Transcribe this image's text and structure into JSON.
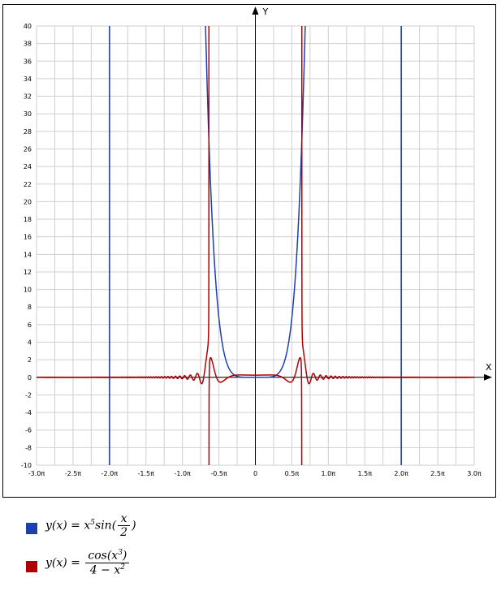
{
  "chart_data": {
    "type": "line",
    "title": "",
    "xlabel": "X",
    "ylabel": "Y",
    "xlim_pi": [
      -3.0,
      3.0
    ],
    "ylim": [
      -10,
      40
    ],
    "grid": true,
    "x_ticks": [
      {
        "value_pi": -3.0,
        "label": "-3.0π"
      },
      {
        "value_pi": -2.5,
        "label": "-2.5π"
      },
      {
        "value_pi": -2.0,
        "label": "-2.0π"
      },
      {
        "value_pi": -1.5,
        "label": "-1.5π"
      },
      {
        "value_pi": -1.0,
        "label": "-1.0π"
      },
      {
        "value_pi": -0.5,
        "label": "-0.5π"
      },
      {
        "value_pi": 0,
        "label": "0"
      },
      {
        "value_pi": 0.5,
        "label": "0.5π"
      },
      {
        "value_pi": 1.0,
        "label": "1.0π"
      },
      {
        "value_pi": 1.5,
        "label": "1.5π"
      },
      {
        "value_pi": 2.0,
        "label": "2.0π"
      },
      {
        "value_pi": 2.5,
        "label": "2.5π"
      },
      {
        "value_pi": 3.0,
        "label": "3.0π"
      }
    ],
    "y_ticks": [
      40,
      38,
      36,
      34,
      32,
      30,
      28,
      26,
      24,
      22,
      20,
      18,
      16,
      14,
      12,
      10,
      8,
      6,
      4,
      2,
      0,
      -2,
      -4,
      -6,
      -8,
      -10
    ],
    "series": [
      {
        "formula": "x^5 sin(x/2)",
        "color": "#1f3eb0",
        "values": [
          {
            "x": -2.2,
            "y": 40.0
          },
          {
            "x": -2.1,
            "y": 30.6
          },
          {
            "x": -2.0,
            "y": 26.9
          },
          {
            "x": -1.9,
            "y": 20.2
          },
          {
            "x": -1.8,
            "y": 14.7
          },
          {
            "x": -1.6,
            "y": 7.5
          },
          {
            "x": -1.4,
            "y": 3.5
          },
          {
            "x": -1.2,
            "y": 1.4
          },
          {
            "x": -1.0,
            "y": 0.48
          },
          {
            "x": -0.8,
            "y": 0.13
          },
          {
            "x": -0.6,
            "y": 0.023
          },
          {
            "x": -0.4,
            "y": 0.002
          },
          {
            "x": 0,
            "y": 0
          },
          {
            "x": 0.4,
            "y": 0.002
          },
          {
            "x": 0.6,
            "y": 0.023
          },
          {
            "x": 0.8,
            "y": 0.13
          },
          {
            "x": 1.0,
            "y": 0.48
          },
          {
            "x": 1.2,
            "y": 1.4
          },
          {
            "x": 1.4,
            "y": 3.5
          },
          {
            "x": 1.6,
            "y": 7.5
          },
          {
            "x": 1.8,
            "y": 14.7
          },
          {
            "x": 1.9,
            "y": 20.2
          },
          {
            "x": 2.0,
            "y": 26.9
          },
          {
            "x": 2.1,
            "y": 30.6
          },
          {
            "x": 2.2,
            "y": 40.0
          }
        ],
        "vertical_lines_x": [
          -6.283,
          6.283
        ]
      },
      {
        "formula": "cos(x^3) / (4 - x^2)",
        "color": "#b00000",
        "values": [
          {
            "x": -2.4,
            "y": -0.36
          },
          {
            "x": -2.2,
            "y": 0.71
          },
          {
            "x": -2.1,
            "y": 1.9
          },
          {
            "x": -2.04,
            "y": 2.2
          },
          {
            "x": -2.01,
            "y": 8.0
          },
          {
            "x": -2.0,
            "y": 40.0
          },
          {
            "x": -1.96,
            "y": -10.0
          },
          {
            "x": -1.9,
            "y": -0.47
          },
          {
            "x": -1.7,
            "y": -0.2
          },
          {
            "x": -1.5,
            "y": -0.56
          },
          {
            "x": -1.3,
            "y": 0.2
          },
          {
            "x": -1.0,
            "y": 0.18
          },
          {
            "x": -0.5,
            "y": 0.26
          },
          {
            "x": 0,
            "y": 0.25
          },
          {
            "x": 0.5,
            "y": 0.26
          },
          {
            "x": 1.0,
            "y": 0.18
          },
          {
            "x": 1.3,
            "y": 0.2
          },
          {
            "x": 1.5,
            "y": -0.56
          },
          {
            "x": 1.7,
            "y": -0.2
          },
          {
            "x": 1.9,
            "y": -0.47
          },
          {
            "x": 1.96,
            "y": -10.0
          },
          {
            "x": 2.0,
            "y": 40.0
          },
          {
            "x": 2.01,
            "y": 8.0
          },
          {
            "x": 2.04,
            "y": 2.2
          },
          {
            "x": 2.1,
            "y": 1.9
          },
          {
            "x": 2.2,
            "y": 0.71
          },
          {
            "x": 2.4,
            "y": -0.36
          }
        ]
      }
    ]
  },
  "legend": {
    "items": [
      {
        "color": "#1f3eb0",
        "lhs": "y(x) =",
        "expr_before": "x",
        "exp": "5",
        "expr_mid": "sin(",
        "frac_num": "x",
        "frac_den": "2",
        "expr_after": ")"
      },
      {
        "color": "#b00000",
        "lhs": "y(x) =",
        "frac_num_pre": "cos(x",
        "frac_num_exp": "3",
        "frac_num_post": ")",
        "frac_den_pre": "4 − x",
        "frac_den_exp": "2"
      }
    ]
  }
}
